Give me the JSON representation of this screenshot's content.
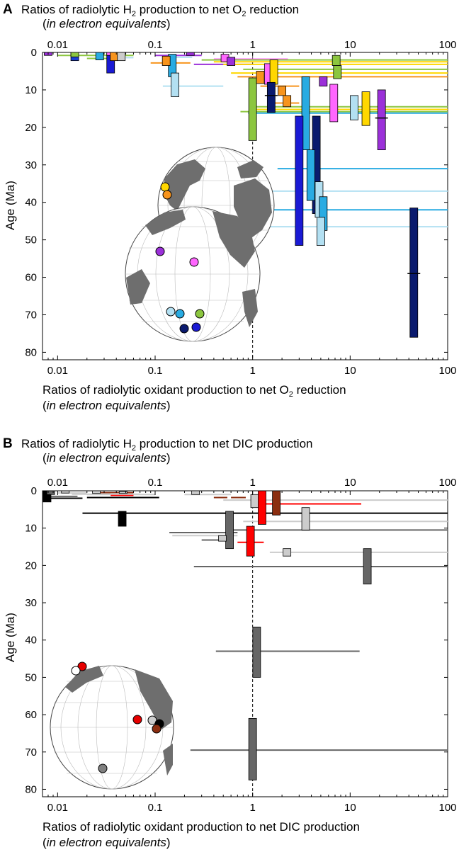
{
  "chart_data": [
    {
      "panel_label": "A",
      "type": "range",
      "title_top": [
        "Ratios of radiolytic H",
        "2",
        " production to net O",
        "2",
        " reduction"
      ],
      "title_top_line2": "in electron equivalents",
      "xlabel_bottom": [
        "Ratios of radiolytic oxidant production to net O",
        "2",
        " reduction"
      ],
      "xlabel_bottom_line2": "in electron equivalents",
      "ylabel": "Age (Ma)",
      "x_scale": "log",
      "xlim": [
        0.007,
        100
      ],
      "ylim": [
        0,
        82
      ],
      "x_ticks": [
        0.01,
        0.1,
        1,
        10,
        100
      ],
      "x_tick_labels": [
        "0.01",
        "0.1",
        "1",
        "10",
        "100"
      ],
      "y_ticks": [
        0,
        10,
        20,
        30,
        40,
        50,
        60,
        70,
        80
      ],
      "y_tick_labels": [
        "0",
        "10",
        "20",
        "30",
        "40",
        "50",
        "60",
        "70",
        "80"
      ],
      "reference_line_x": 1,
      "bars": [
        {
          "x": 0.008,
          "y0": 0,
          "y1": 0.8,
          "color": "#9b30d9"
        },
        {
          "x": 0.015,
          "y0": 0,
          "y1": 2.2,
          "color": "#1a3fd4"
        },
        {
          "x": 0.015,
          "y0": 0,
          "y1": 1.2,
          "color": "#8cc63f"
        },
        {
          "x": 0.027,
          "y0": 0,
          "y1": 2.0,
          "color": "#29abe2"
        },
        {
          "x": 0.035,
          "y0": 0,
          "y1": 5.5,
          "color": "#1a1ad4"
        },
        {
          "x": 0.035,
          "y0": 0,
          "y1": 0.8,
          "color": "#ff66ff"
        },
        {
          "x": 0.038,
          "y0": 0,
          "y1": 2.2,
          "color": "#f7941d"
        },
        {
          "x": 0.045,
          "y0": 0,
          "y1": 2.2,
          "color": "#cccccc"
        },
        {
          "x": 0.15,
          "y0": 0.5,
          "y1": 6.5,
          "color": "#29abe2"
        },
        {
          "x": 0.13,
          "y0": 1.0,
          "y1": 3.5,
          "color": "#f7941d"
        },
        {
          "x": 0.16,
          "y0": 5.5,
          "y1": 11.8,
          "color": "#b3e0f2"
        },
        {
          "x": 0.23,
          "y0": 0,
          "y1": 0.8,
          "color": "#9b30d9"
        },
        {
          "x": 0.52,
          "y0": 0.5,
          "y1": 2.5,
          "color": "#ff66ff"
        },
        {
          "x": 0.6,
          "y0": 1.3,
          "y1": 3.5,
          "color": "#9b30d9"
        },
        {
          "x": 1.0,
          "y0": 6.8,
          "y1": 23.5,
          "color": "#8cc63f"
        },
        {
          "x": 1.2,
          "y0": 5.0,
          "y1": 8.3,
          "color": "#f7941d"
        },
        {
          "x": 1.45,
          "y0": 3.0,
          "y1": 8.5,
          "color": "#ff66ff"
        },
        {
          "x": 1.65,
          "y0": 2.0,
          "y1": 8.5,
          "color": "#ffd700"
        },
        {
          "x": 1.55,
          "y0": 8.0,
          "y1": 16.0,
          "color": "#0a1a6e",
          "whisker_y": 11.5
        },
        {
          "x": 2.0,
          "y0": 9.0,
          "y1": 11.5,
          "color": "#f7941d"
        },
        {
          "x": 2.25,
          "y0": 11.5,
          "y1": 14.5,
          "color": "#f7941d"
        },
        {
          "x": 3.5,
          "y0": 6.5,
          "y1": 26.0,
          "color": "#29abe2"
        },
        {
          "x": 3.0,
          "y0": 17.0,
          "y1": 51.5,
          "color": "#1a1ad4"
        },
        {
          "x": 4.5,
          "y0": 17.0,
          "y1": 43.0,
          "color": "#0a1a6e"
        },
        {
          "x": 3.95,
          "y0": 26.0,
          "y1": 39.5,
          "color": "#29abe2"
        },
        {
          "x": 4.8,
          "y0": 34.5,
          "y1": 44.0,
          "color": "#b3e0f2"
        },
        {
          "x": 5.3,
          "y0": 38.5,
          "y1": 47.5,
          "color": "#29abe2"
        },
        {
          "x": 5.0,
          "y0": 44.0,
          "y1": 51.5,
          "color": "#b3e0f2"
        },
        {
          "x": 5.3,
          "y0": 6.5,
          "y1": 9.0,
          "color": "#9b30d9"
        },
        {
          "x": 6.8,
          "y0": 8.5,
          "y1": 18.5,
          "color": "#ff66ff"
        },
        {
          "x": 7.2,
          "y0": 0.8,
          "y1": 3.5,
          "color": "#8cc63f"
        },
        {
          "x": 7.4,
          "y0": 3.5,
          "y1": 7.0,
          "color": "#8cc63f"
        },
        {
          "x": 11.0,
          "y0": 11.5,
          "y1": 18.0,
          "color": "#b3e0f2"
        },
        {
          "x": 14.5,
          "y0": 10.5,
          "y1": 19.5,
          "color": "#ffd700"
        },
        {
          "x": 21.0,
          "y0": 10.0,
          "y1": 26.0,
          "color": "#9b30d9",
          "whisker_y": 17.5
        },
        {
          "x": 45.0,
          "y0": 41.5,
          "y1": 76.0,
          "color": "#0a1a6e",
          "whisker_y": 59.0
        }
      ],
      "lines": [
        {
          "x0": 0.01,
          "x1": 0.06,
          "y": 0.8,
          "color": "#8cc63f"
        },
        {
          "x0": 0.02,
          "x1": 0.035,
          "y": 1.6,
          "color": "#8cc63f"
        },
        {
          "x0": 0.05,
          "x1": 0.06,
          "y": 1.4,
          "color": "#b3e0f2"
        },
        {
          "x0": 0.09,
          "x1": 0.23,
          "y": 2.8,
          "color": "#f7941d"
        },
        {
          "x0": 0.1,
          "x1": 0.3,
          "y": 0.8,
          "color": "#9b30d9"
        },
        {
          "x0": 0.14,
          "x1": 0.24,
          "y": 1.3,
          "color": "#b3e0f2"
        },
        {
          "x0": 0.25,
          "x1": 1.0,
          "y": 3.2,
          "color": "#9b30d9"
        },
        {
          "x0": 0.4,
          "x1": 2.3,
          "y": 1.8,
          "color": "#ff66ff"
        },
        {
          "x0": 0.12,
          "x1": 0.5,
          "y": 9.0,
          "color": "#b3e0f2"
        },
        {
          "x0": 0.4,
          "x1": 100,
          "y": 2.5,
          "color": "#ffd700"
        },
        {
          "x0": 0.5,
          "x1": 100,
          "y": 3.2,
          "color": "#ffd700"
        },
        {
          "x0": 0.3,
          "x1": 100,
          "y": 2.0,
          "color": "#8cc63f"
        },
        {
          "x0": 0.6,
          "x1": 100,
          "y": 5.5,
          "color": "#ffd700"
        },
        {
          "x0": 0.7,
          "x1": 100,
          "y": 6.5,
          "color": "#f7941d"
        },
        {
          "x0": 0.8,
          "x1": 100,
          "y": 4.5,
          "color": "#8cc63f"
        },
        {
          "x0": 1.2,
          "x1": 3.0,
          "y": 9.0,
          "color": "#f7941d"
        },
        {
          "x0": 1.5,
          "x1": 3.0,
          "y": 13.5,
          "color": "#f7941d"
        },
        {
          "x0": 1.0,
          "x1": 100,
          "y": 14.5,
          "color": "#8cc63f"
        },
        {
          "x0": 1.0,
          "x1": 100,
          "y": 15.2,
          "color": "#ffd700"
        },
        {
          "x0": 0.75,
          "x1": 100,
          "y": 15.8,
          "color": "#8cc63f"
        },
        {
          "x0": 0.9,
          "x1": 100,
          "y": 16.2,
          "color": "#29abe2"
        },
        {
          "x0": 1.8,
          "x1": 100,
          "y": 31.0,
          "color": "#29abe2"
        },
        {
          "x0": 1.0,
          "x1": 100,
          "y": 37.0,
          "color": "#b3e0f2"
        },
        {
          "x0": 1.1,
          "x1": 100,
          "y": 42.0,
          "color": "#29abe2"
        },
        {
          "x0": 1.5,
          "x1": 100,
          "y": 46.5,
          "color": "#b3e0f2"
        }
      ]
    },
    {
      "panel_label": "B",
      "type": "range",
      "title_top": [
        "Ratios of radiolytic H",
        "2",
        " production to net DIC production"
      ],
      "title_top_line2": "in electron equivalents",
      "xlabel_bottom": [
        "Ratios of radiolytic oxidant production to net DIC production"
      ],
      "xlabel_bottom_line2": "in electron equivalents",
      "ylabel": "Age (Ma)",
      "x_scale": "log",
      "xlim": [
        0.007,
        100
      ],
      "ylim": [
        0,
        82
      ],
      "x_ticks": [
        0.01,
        0.1,
        1,
        10,
        100
      ],
      "x_tick_labels": [
        "0.01",
        "0.1",
        "1",
        "10",
        "100"
      ],
      "y_ticks": [
        0,
        10,
        20,
        30,
        40,
        50,
        60,
        70,
        80
      ],
      "y_tick_labels": [
        "0",
        "10",
        "20",
        "30",
        "40",
        "50",
        "60",
        "70",
        "80"
      ],
      "reference_line_x": 1,
      "bars": [
        {
          "x": 0.0078,
          "y0": 0,
          "y1": 3.0,
          "color": "#000000"
        },
        {
          "x": 0.0085,
          "y0": 0,
          "y1": 1.0,
          "color": "#666666"
        },
        {
          "x": 0.012,
          "y0": 0,
          "y1": 0.6,
          "color": "#cccccc"
        },
        {
          "x": 0.025,
          "y0": 0,
          "y1": 0.7,
          "color": "#cccccc"
        },
        {
          "x": 0.046,
          "y0": 5.5,
          "y1": 9.5,
          "color": "#000000"
        },
        {
          "x": 0.047,
          "y0": 0.2,
          "y1": 0.7,
          "color": "#cccccc"
        },
        {
          "x": 0.26,
          "y0": 0,
          "y1": 1.0,
          "color": "#cccccc"
        },
        {
          "x": 0.58,
          "y0": 5.5,
          "y1": 15.5,
          "color": "#666666"
        },
        {
          "x": 0.49,
          "y0": 12.0,
          "y1": 13.5,
          "color": "#cccccc"
        },
        {
          "x": 1.05,
          "y0": 1.0,
          "y1": 4.5,
          "color": "#cccccc"
        },
        {
          "x": 1.25,
          "y0": 0,
          "y1": 9.0,
          "color": "#ff0000"
        },
        {
          "x": 1.75,
          "y0": 0,
          "y1": 6.5,
          "color": "#8b2e10"
        },
        {
          "x": 0.95,
          "y0": 9.5,
          "y1": 17.5,
          "color": "#ff0000"
        },
        {
          "x": 2.25,
          "y0": 15.5,
          "y1": 17.5,
          "color": "#cccccc"
        },
        {
          "x": 3.5,
          "y0": 4.5,
          "y1": 10.5,
          "color": "#cccccc"
        },
        {
          "x": 15.0,
          "y0": 15.5,
          "y1": 25.0,
          "color": "#666666"
        },
        {
          "x": 1.1,
          "y0": 36.5,
          "y1": 50.0,
          "color": "#666666"
        },
        {
          "x": 1.0,
          "y0": 61.0,
          "y1": 77.5,
          "color": "#666666"
        }
      ],
      "lines": [
        {
          "x0": 0.0075,
          "x1": 0.018,
          "y": 2.0,
          "color": "#000000"
        },
        {
          "x0": 0.0075,
          "x1": 0.016,
          "y": 1.5,
          "color": "#666666"
        },
        {
          "x0": 0.01,
          "x1": 0.02,
          "y": 0.6,
          "color": "#cccccc"
        },
        {
          "x0": 0.02,
          "x1": 0.1,
          "y": 1.0,
          "color": "#cccccc"
        },
        {
          "x0": 0.02,
          "x1": 0.11,
          "y": 1.8,
          "color": "#000000"
        },
        {
          "x0": 0.025,
          "x1": 0.06,
          "y": 0.5,
          "color": "#8b2e10"
        },
        {
          "x0": 0.035,
          "x1": 0.06,
          "y": 1.2,
          "color": "#ff0000"
        },
        {
          "x0": 0.035,
          "x1": 0.05,
          "y": 0.8,
          "color": "#cccccc"
        },
        {
          "x0": 0.014,
          "x1": 0.07,
          "y": 0.9,
          "color": "#cccccc"
        },
        {
          "x0": 0.2,
          "x1": 0.6,
          "y": 1.0,
          "color": "#cccccc"
        },
        {
          "x0": 0.4,
          "x1": 0.55,
          "y": 1.8,
          "color": "#8b2e10"
        },
        {
          "x0": 0.6,
          "x1": 0.85,
          "y": 1.8,
          "color": "#8b2e10"
        },
        {
          "x0": 0.5,
          "x1": 100,
          "y": 2.5,
          "color": "#cccccc"
        },
        {
          "x0": 1.2,
          "x1": 13.0,
          "y": 3.5,
          "color": "#ff0000"
        },
        {
          "x0": 0.018,
          "x1": 100,
          "y": 6.0,
          "color": "#000000"
        },
        {
          "x0": 0.8,
          "x1": 100,
          "y": 8.2,
          "color": "#cccccc"
        },
        {
          "x0": 0.6,
          "x1": 100,
          "y": 10.5,
          "color": "#666666"
        },
        {
          "x0": 0.14,
          "x1": 0.7,
          "y": 11.2,
          "color": "#666666"
        },
        {
          "x0": 0.15,
          "x1": 0.7,
          "y": 12.0,
          "color": "#cccccc"
        },
        {
          "x0": 0.7,
          "x1": 1.3,
          "y": 13.8,
          "color": "#ff0000"
        },
        {
          "x0": 0.3,
          "x1": 0.6,
          "y": 13.2,
          "color": "#666666"
        },
        {
          "x0": 1.5,
          "x1": 100,
          "y": 16.5,
          "color": "#cccccc"
        },
        {
          "x0": 0.25,
          "x1": 100,
          "y": 20.3,
          "color": "#666666"
        },
        {
          "x0": 0.42,
          "x1": 12.5,
          "y": 43.0,
          "color": "#666666"
        },
        {
          "x0": 0.23,
          "x1": 100,
          "y": 69.5,
          "color": "#666666"
        }
      ]
    }
  ],
  "globes": {
    "land_color": "#6e6e6e",
    "ocean_color": "#ffffff",
    "marker_outline": "#000000"
  }
}
